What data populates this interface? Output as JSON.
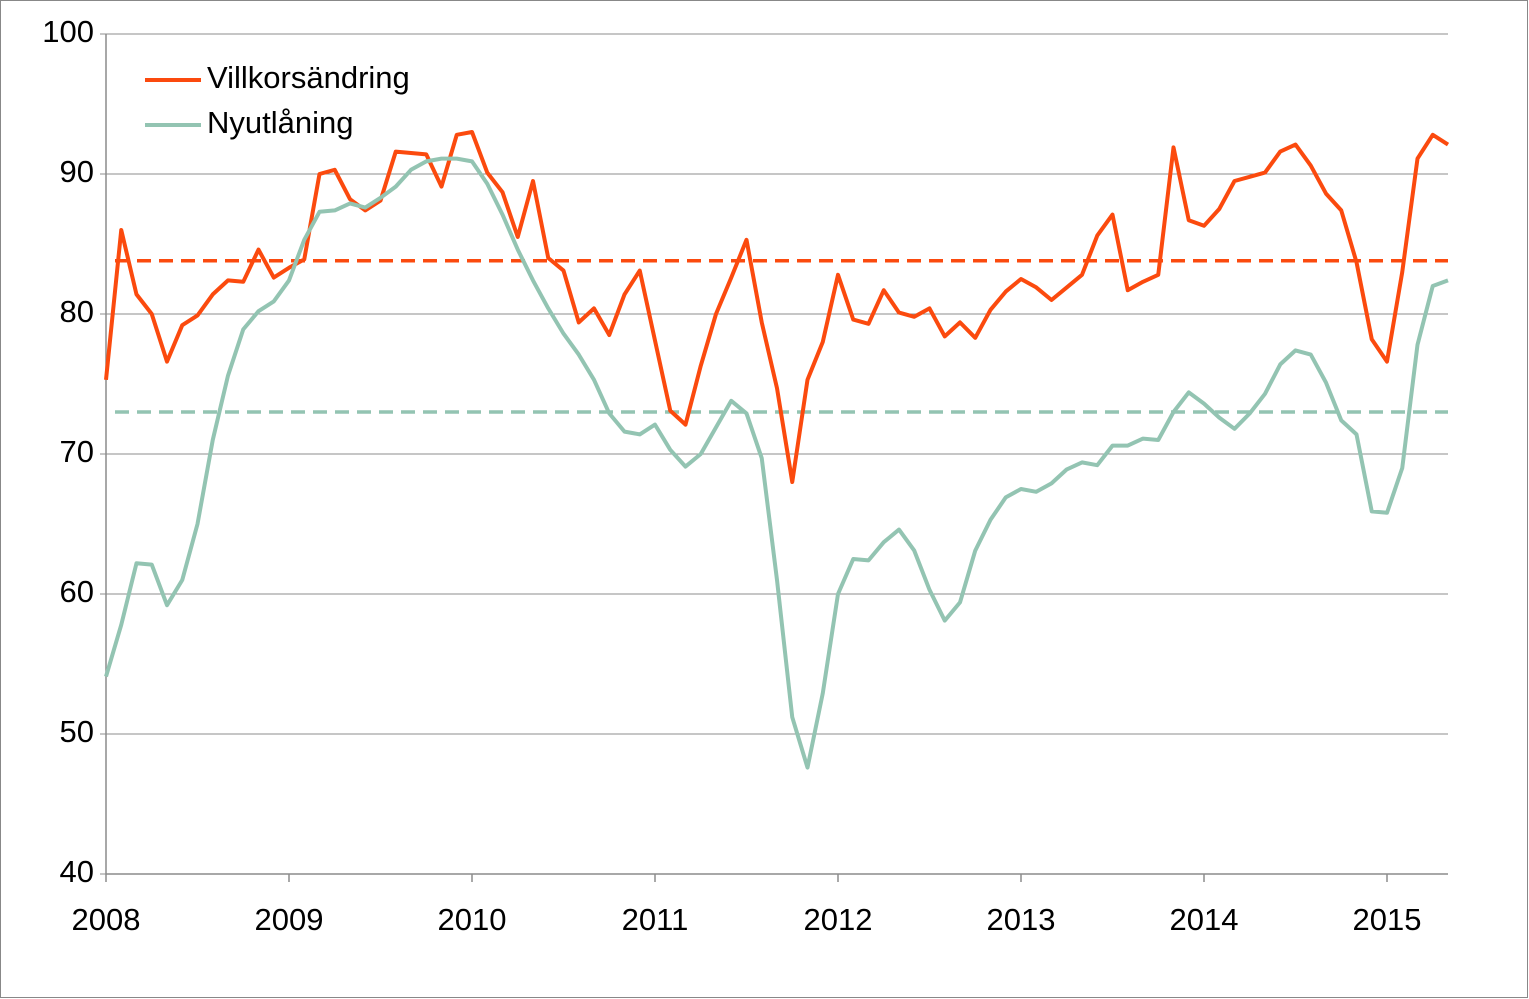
{
  "chart_data": {
    "type": "line",
    "categories": [
      "2008",
      null,
      null,
      null,
      null,
      null,
      null,
      null,
      null,
      null,
      null,
      null,
      "2009",
      null,
      null,
      null,
      null,
      null,
      null,
      null,
      null,
      null,
      null,
      null,
      "2010",
      null,
      null,
      null,
      null,
      null,
      null,
      null,
      null,
      null,
      null,
      null,
      "2011",
      null,
      null,
      null,
      null,
      null,
      null,
      null,
      null,
      null,
      null,
      null,
      "2012",
      null,
      null,
      null,
      null,
      null,
      null,
      null,
      null,
      null,
      null,
      null,
      "2013",
      null,
      null,
      null,
      null,
      null,
      null,
      null,
      null,
      null,
      null,
      null,
      "2014",
      null,
      null,
      null,
      null,
      null,
      null,
      null,
      null,
      null,
      null,
      null,
      "2015",
      null,
      null,
      null,
      null
    ],
    "series": [
      {
        "name": "Villkorsändring",
        "color": "#fb4a0e",
        "values": [
          75.3,
          86,
          81.4,
          80,
          76.6,
          79.2,
          79.9,
          81.4,
          82.4,
          82.3,
          84.6,
          82.6,
          83.3,
          83.9,
          90,
          90.3,
          88.2,
          87.4,
          88.1,
          91.6,
          91.5,
          91.4,
          89.1,
          92.8,
          93,
          90.1,
          88.7,
          85.5,
          89.5,
          84,
          83.1,
          79.4,
          80.4,
          78.5,
          81.4,
          83.1,
          78.1,
          73.1,
          72.1,
          76.3,
          80,
          82.6,
          85.3,
          79.4,
          74.7,
          68,
          75.3,
          78,
          82.8,
          79.6,
          79.3,
          81.7,
          80.1,
          79.8,
          80.4,
          78.4,
          79.4,
          78.3,
          80.3,
          81.6,
          82.5,
          81.9,
          81,
          81.9,
          82.8,
          85.6,
          87.1,
          81.7,
          82.3,
          82.8,
          91.9,
          86.7,
          86.3,
          87.5,
          89.5,
          89.8,
          90.1,
          91.6,
          92.1,
          90.6,
          88.6,
          87.4,
          83.7,
          78.2,
          76.6,
          83,
          91.1,
          92.8,
          92.1
        ]
      },
      {
        "name": "Nyutlåning",
        "color": "#93c4b2",
        "values": [
          54.1,
          57.8,
          62.2,
          62.1,
          59.2,
          61,
          65,
          71,
          75.6,
          78.9,
          80.2,
          80.9,
          82.4,
          85.3,
          87.3,
          87.4,
          87.9,
          87.6,
          88.3,
          89.1,
          90.3,
          90.9,
          91.1,
          91.1,
          90.9,
          89.3,
          87.1,
          84.6,
          82.4,
          80.4,
          78.6,
          77.1,
          75.3,
          72.9,
          71.6,
          71.4,
          72.1,
          70.3,
          69.1,
          70,
          71.9,
          73.8,
          72.9,
          69.7,
          61,
          51.2,
          47.6,
          52.9,
          60,
          62.5,
          62.4,
          63.7,
          64.6,
          63.1,
          60.3,
          58.1,
          59.4,
          63.1,
          65.3,
          66.9,
          67.5,
          67.3,
          67.9,
          68.9,
          69.4,
          69.2,
          70.6,
          70.6,
          71.1,
          71,
          73,
          74.4,
          73.6,
          72.6,
          71.8,
          72.9,
          74.3,
          76.4,
          77.4,
          77.1,
          75.1,
          72.4,
          71.4,
          65.9,
          65.8,
          69,
          77.8,
          82,
          82.4
        ]
      }
    ],
    "reference_lines": [
      {
        "value": 83.8,
        "color": "#fb4a0e",
        "style": "dashed"
      },
      {
        "value": 73,
        "color": "#93c4b2",
        "style": "dashed"
      }
    ],
    "ylim": [
      40,
      100
    ],
    "yticks": [
      40,
      50,
      60,
      70,
      80,
      90,
      100
    ],
    "grid": true,
    "legend": "upper left"
  }
}
